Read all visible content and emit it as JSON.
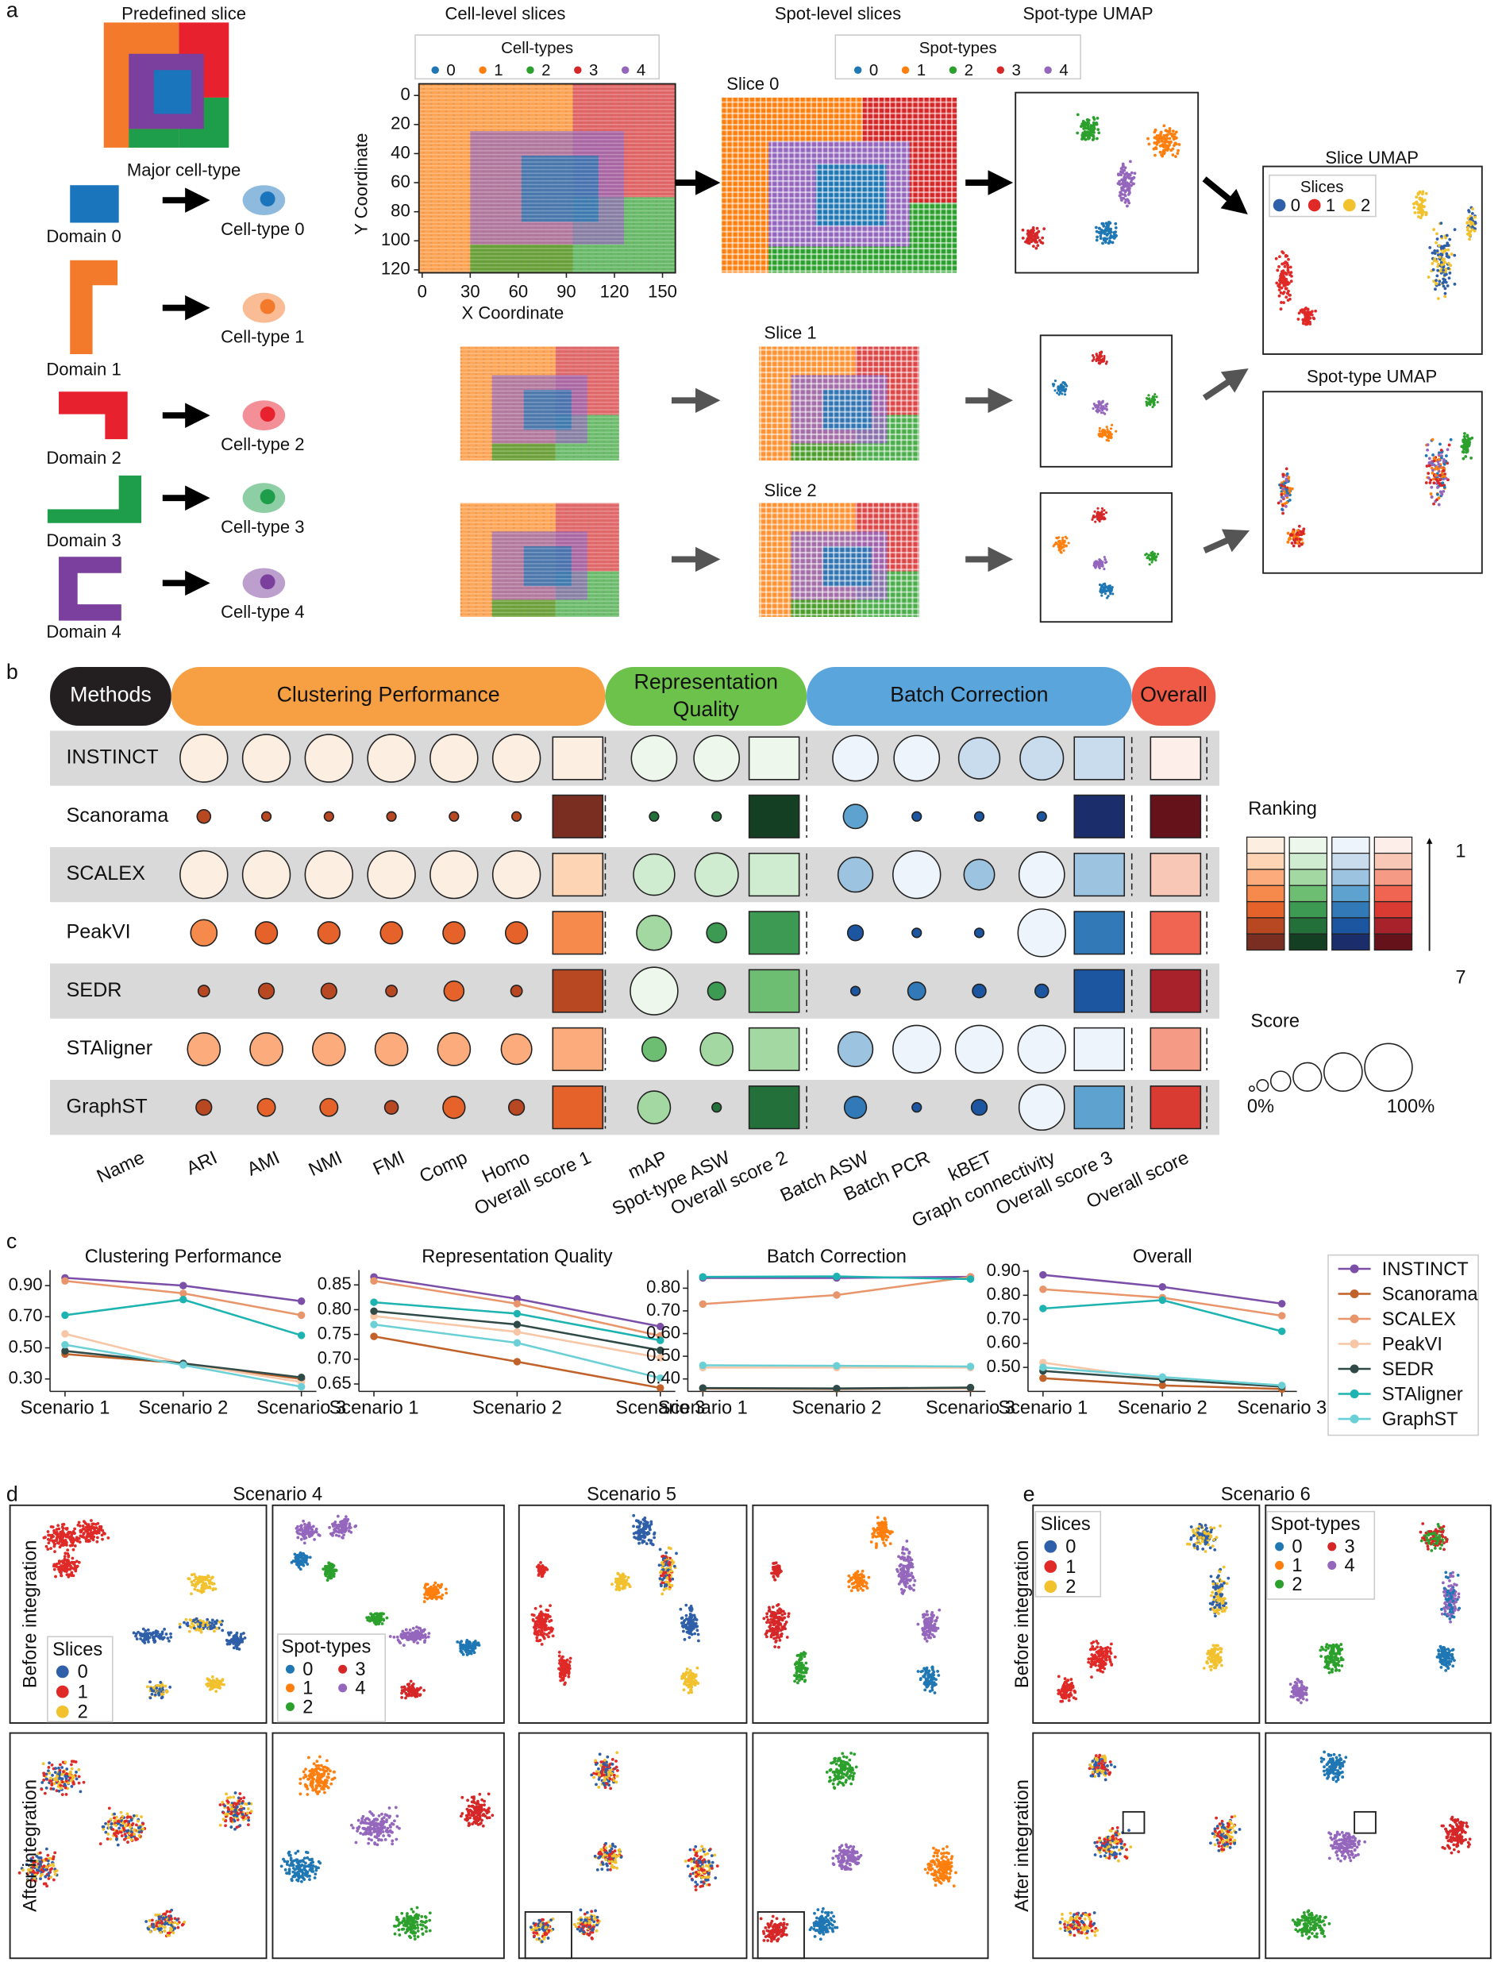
{
  "panel_a": {
    "label": "a",
    "predefined_slice": "Predefined slice",
    "major_cell_type": "Major cell-type",
    "domains": [
      "Domain 0",
      "Domain 1",
      "Domain 2",
      "Domain 3",
      "Domain 4"
    ],
    "cell_types": [
      "Cell-type 0",
      "Cell-type 1",
      "Cell-type 2",
      "Cell-type 3",
      "Cell-type 4"
    ],
    "cell_level_title": "Cell-level slices",
    "spot_level_title": "Spot-level slices",
    "spot_umap_title": "Spot-type UMAP",
    "cell_legend": {
      "title": "Cell-types",
      "labels": [
        "0",
        "1",
        "2",
        "3",
        "4"
      ]
    },
    "spot_legend": {
      "title": "Spot-types",
      "labels": [
        "0",
        "1",
        "2",
        "3",
        "4"
      ]
    },
    "x_axis": {
      "label": "X Coordinate",
      "xlim": [
        -2,
        158
      ],
      "ticks": [
        0,
        30,
        60,
        90,
        120,
        150
      ]
    },
    "y_axis": {
      "label": "Y Coordinate",
      "ylim": [
        -8,
        122
      ],
      "ticks": [
        0,
        20,
        40,
        60,
        80,
        100,
        120
      ]
    },
    "slices": [
      "Slice 0",
      "Slice 1",
      "Slice 2"
    ],
    "slice_umap_title": "Slice UMAP",
    "slice_legend": {
      "title": "Slices",
      "labels": [
        "0",
        "1",
        "2"
      ]
    },
    "spot_umap_title_2": "Spot-type UMAP",
    "domain_colors": [
      "#1b75bc",
      "#f37a2a",
      "#e8212f",
      "#1e9d4a",
      "#7b3f9e"
    ],
    "type_colors": [
      "#1f77b4",
      "#ff7f0e",
      "#2ca02c",
      "#d62728",
      "#9467bd"
    ],
    "slice_colors": [
      "#2f5fa8",
      "#e02a27",
      "#f2c12e"
    ]
  },
  "panel_b": {
    "label": "b",
    "groups": [
      "Methods",
      "Clustering Performance",
      [
        "Representation",
        "Quality"
      ],
      "Batch Correction",
      "Overall"
    ],
    "group_colors": [
      "#231f20",
      "#f7a043",
      "#6cc24a",
      "#5aa6dc",
      "#ee5a45"
    ],
    "methods": [
      "INSTINCT",
      "Scanorama",
      "SCALEX",
      "PeakVI",
      "SEDR",
      "STAligner",
      "GraphST"
    ],
    "columns": [
      "Name",
      "ARI",
      "AMI",
      "NMI",
      "FMI",
      "Comp",
      "Homo",
      "Overall score 1",
      "mAP",
      "Spot-type ASW",
      "Overall score 2",
      "Batch ASW",
      "Batch PCR",
      "kBET",
      "Graph connectivity",
      "Overall score 3",
      "Overall score"
    ],
    "scores": [
      [
        100,
        100,
        100,
        100,
        100,
        100,
        95,
        95,
        95,
        95,
        85,
        90
      ],
      [
        20,
        10,
        10,
        10,
        10,
        10,
        10,
        10,
        45,
        10,
        10,
        10
      ],
      [
        100,
        100,
        100,
        100,
        100,
        100,
        85,
        90,
        70,
        100,
        60,
        95
      ],
      [
        50,
        40,
        40,
        40,
        40,
        40,
        70,
        35,
        25,
        10,
        10,
        100
      ],
      [
        15,
        25,
        25,
        15,
        35,
        15,
        100,
        30,
        10,
        30,
        20,
        20
      ],
      [
        65,
        65,
        65,
        65,
        65,
        60,
        45,
        65,
        70,
        100,
        100,
        100
      ],
      [
        25,
        30,
        30,
        20,
        40,
        25,
        65,
        10,
        40,
        10,
        25,
        95
      ]
    ],
    "ranks": [
      [
        1,
        1,
        2,
        1
      ],
      [
        7,
        7,
        7,
        7
      ],
      [
        2,
        2,
        3,
        2
      ],
      [
        4,
        5,
        5,
        4
      ],
      [
        6,
        4,
        6,
        6
      ],
      [
        3,
        3,
        1,
        3
      ],
      [
        5,
        6,
        4,
        5
      ]
    ],
    "palettes": [
      [
        "#fdeee2",
        "#fdd5b5",
        "#fcac7c",
        "#f68a4d",
        "#e5622a",
        "#b84822",
        "#7a2e22"
      ],
      [
        "#eef7ec",
        "#d0ecd0",
        "#a4d8a2",
        "#6dbd72",
        "#3d9a53",
        "#23703a",
        "#153f23"
      ],
      [
        "#eef4fb",
        "#c9dcee",
        "#9cc4e1",
        "#5ea2cf",
        "#3179b7",
        "#1c55a0",
        "#1b2d6b"
      ],
      [
        "#fdeee9",
        "#f9c7b6",
        "#f59a85",
        "#ef6551",
        "#d93a31",
        "#a7222a",
        "#65121b"
      ]
    ],
    "ranking_legend": {
      "title": "Ranking",
      "range": [
        1,
        7
      ]
    },
    "score_legend": {
      "title": "Score",
      "ticks": [
        {
          "value": 0,
          "label": "0%"
        },
        {
          "value": 100,
          "label": "100%"
        }
      ]
    }
  },
  "panel_c_label": "c",
  "chart_data": [
    {
      "type": "line",
      "title": "Clustering Performance",
      "categories": [
        "Scenario 1",
        "Scenario 2",
        "Scenario 3"
      ],
      "ylim": [
        0.22,
        1.0
      ],
      "yticks": [
        {
          "value": 0.3,
          "label": "0.30"
        },
        {
          "value": 0.5,
          "label": "0.50"
        },
        {
          "value": 0.7,
          "label": "0.70"
        },
        {
          "value": 0.9,
          "label": "0.90"
        }
      ],
      "series": [
        {
          "name": "INSTINCT",
          "color": "#7b4fa8",
          "values": [
            0.95,
            0.9,
            0.8
          ]
        },
        {
          "name": "Scanorama",
          "color": "#c0622a",
          "values": [
            0.46,
            0.4,
            0.3
          ]
        },
        {
          "name": "SCALEX",
          "color": "#e8956b",
          "values": [
            0.93,
            0.85,
            0.71
          ]
        },
        {
          "name": "PeakVI",
          "color": "#f6c6a6",
          "values": [
            0.59,
            0.4,
            0.28
          ]
        },
        {
          "name": "SEDR",
          "color": "#2f4a47",
          "values": [
            0.48,
            0.4,
            0.31
          ]
        },
        {
          "name": "STAligner",
          "color": "#1db3b0",
          "values": [
            0.71,
            0.81,
            0.58
          ]
        },
        {
          "name": "GraphST",
          "color": "#6ad0d6",
          "values": [
            0.52,
            0.39,
            0.25
          ]
        }
      ]
    },
    {
      "type": "line",
      "title": "Representation Quality",
      "categories": [
        "Scenario 1",
        "Scenario 2",
        "Scenario 3"
      ],
      "ylim": [
        0.635,
        0.88
      ],
      "yticks": [
        0.65,
        {
          "value": 0.7,
          "label": "0.70"
        },
        0.75,
        {
          "value": 0.8,
          "label": "0.80"
        },
        0.85
      ],
      "series": [
        {
          "name": "INSTINCT",
          "color": "#7b4fa8",
          "values": [
            0.866,
            0.822,
            0.766
          ]
        },
        {
          "name": "Scanorama",
          "color": "#c0622a",
          "values": [
            0.746,
            0.695,
            0.642
          ]
        },
        {
          "name": "SCALEX",
          "color": "#e8956b",
          "values": [
            0.858,
            0.812,
            0.747
          ]
        },
        {
          "name": "PeakVI",
          "color": "#f6c6a6",
          "values": [
            0.787,
            0.755,
            0.703
          ]
        },
        {
          "name": "SEDR",
          "color": "#2f4a47",
          "values": [
            0.797,
            0.77,
            0.718
          ]
        },
        {
          "name": "STAligner",
          "color": "#1db3b0",
          "values": [
            0.815,
            0.792,
            0.738
          ]
        },
        {
          "name": "GraphST",
          "color": "#6ad0d6",
          "values": [
            0.77,
            0.733,
            0.662
          ]
        }
      ]
    },
    {
      "type": "line",
      "title": "Batch Correction",
      "categories": [
        "Scenario 1",
        "Scenario 2",
        "Scenario 3"
      ],
      "ylim": [
        0.345,
        0.88
      ],
      "yticks": [
        {
          "value": 0.4,
          "label": "0.40"
        },
        {
          "value": 0.5,
          "label": "0.50"
        },
        {
          "value": 0.6,
          "label": "0.60"
        },
        {
          "value": 0.7,
          "label": "0.70"
        },
        {
          "value": 0.8,
          "label": "0.80"
        }
      ],
      "series": [
        {
          "name": "INSTINCT",
          "color": "#7b4fa8",
          "values": [
            0.845,
            0.845,
            0.85
          ]
        },
        {
          "name": "Scanorama",
          "color": "#c0622a",
          "values": [
            0.358,
            0.356,
            0.36
          ]
        },
        {
          "name": "SCALEX",
          "color": "#e8956b",
          "values": [
            0.73,
            0.77,
            0.85
          ]
        },
        {
          "name": "PeakVI",
          "color": "#f6c6a6",
          "values": [
            0.45,
            0.45,
            0.45
          ]
        },
        {
          "name": "SEDR",
          "color": "#2f4a47",
          "values": [
            0.36,
            0.358,
            0.362
          ]
        },
        {
          "name": "STAligner",
          "color": "#1db3b0",
          "values": [
            0.85,
            0.852,
            0.84
          ]
        },
        {
          "name": "GraphST",
          "color": "#6ad0d6",
          "values": [
            0.46,
            0.458,
            0.455
          ]
        }
      ]
    },
    {
      "type": "line",
      "title": "Overall",
      "categories": [
        "Scenario 1",
        "Scenario 2",
        "Scenario 3"
      ],
      "ylim": [
        0.4,
        0.905
      ],
      "yticks": [
        {
          "value": 0.5,
          "label": "0.50"
        },
        {
          "value": 0.6,
          "label": "0.60"
        },
        {
          "value": 0.7,
          "label": "0.70"
        },
        {
          "value": 0.8,
          "label": "0.80"
        },
        {
          "value": 0.9,
          "label": "0.90"
        }
      ],
      "series": [
        {
          "name": "INSTINCT",
          "color": "#7b4fa8",
          "values": [
            0.885,
            0.835,
            0.765
          ]
        },
        {
          "name": "Scanorama",
          "color": "#c0622a",
          "values": [
            0.455,
            0.425,
            0.41
          ]
        },
        {
          "name": "SCALEX",
          "color": "#e8956b",
          "values": [
            0.825,
            0.79,
            0.715
          ]
        },
        {
          "name": "PeakVI",
          "color": "#f6c6a6",
          "values": [
            0.52,
            0.45,
            0.42
          ]
        },
        {
          "name": "SEDR",
          "color": "#2f4a47",
          "values": [
            0.485,
            0.45,
            0.42
          ]
        },
        {
          "name": "STAligner",
          "color": "#1db3b0",
          "values": [
            0.745,
            0.78,
            0.65
          ]
        },
        {
          "name": "GraphST",
          "color": "#6ad0d6",
          "values": [
            0.5,
            0.46,
            0.425
          ]
        }
      ]
    }
  ],
  "panel_de": {
    "label_d": "d",
    "label_e": "e",
    "titles": [
      "Scenario 4",
      "Scenario 5",
      "Scenario 6"
    ],
    "row_labels": [
      "Before integration",
      "After integration"
    ],
    "slice_legend": {
      "title": "Slices",
      "labels": [
        "0",
        "1",
        "2"
      ]
    },
    "spot_legend": {
      "title": "Spot-types",
      "labels": [
        "0",
        "1",
        "2",
        "3",
        "4"
      ]
    }
  }
}
